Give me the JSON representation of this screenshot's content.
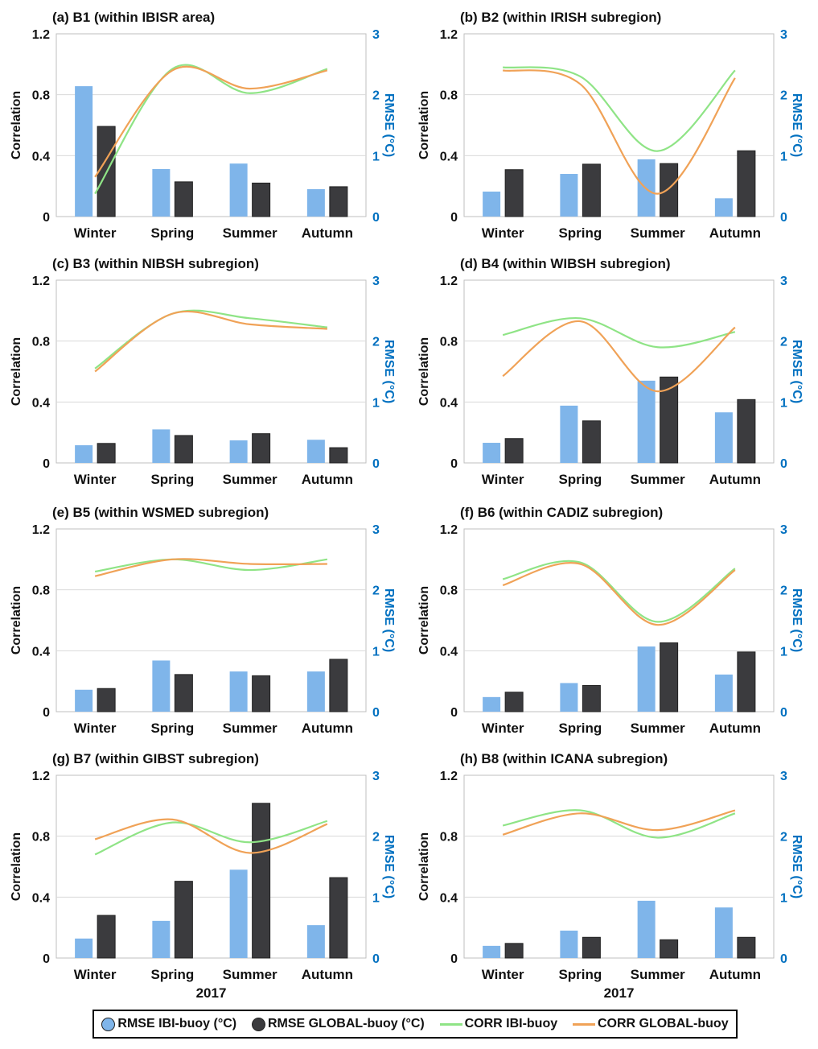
{
  "chart_data": [
    {
      "type": "bar+line",
      "title": "(a) B1 (within IBISR area)",
      "categories": [
        "Winter",
        "Spring",
        "Summer",
        "Autumn"
      ],
      "xlabel": "",
      "ylabel": "Correlation",
      "y2label": "RMSE (°C)",
      "ylim": [
        0,
        1.2
      ],
      "y2lim": [
        0,
        3
      ],
      "yticks": [
        "0",
        "0.4",
        "0.8",
        "1.2"
      ],
      "y2ticks": [
        "0",
        "1",
        "2",
        "3"
      ],
      "series": [
        {
          "name": "RMSE IBI-buoy (°C)",
          "type": "bar",
          "axis": "right",
          "values": [
            2.14,
            0.78,
            0.87,
            0.45
          ]
        },
        {
          "name": "RMSE GLOBAL-buoy (°C)",
          "type": "bar",
          "axis": "right",
          "values": [
            1.48,
            0.57,
            0.55,
            0.49
          ]
        },
        {
          "name": "CORR IBI-buoy",
          "type": "line",
          "axis": "left",
          "values": [
            0.15,
            0.97,
            0.81,
            0.97
          ]
        },
        {
          "name": "CORR GLOBAL-buoy",
          "type": "line",
          "axis": "left",
          "values": [
            0.26,
            0.96,
            0.84,
            0.96
          ]
        }
      ]
    },
    {
      "type": "bar+line",
      "title": "(b) B2 (within IRISH subregion)",
      "categories": [
        "Winter",
        "Spring",
        "Summer",
        "Autumn"
      ],
      "xlabel": "",
      "ylabel": "Correlation",
      "y2label": "RMSE (°C)",
      "ylim": [
        0,
        1.2
      ],
      "y2lim": [
        0,
        3
      ],
      "yticks": [
        "0",
        "0.4",
        "0.8",
        "1.2"
      ],
      "y2ticks": [
        "0",
        "1",
        "2",
        "3"
      ],
      "series": [
        {
          "name": "RMSE IBI-buoy (°C)",
          "type": "bar",
          "axis": "right",
          "values": [
            0.41,
            0.7,
            0.94,
            0.3
          ]
        },
        {
          "name": "RMSE GLOBAL-buoy (°C)",
          "type": "bar",
          "axis": "right",
          "values": [
            0.77,
            0.86,
            0.87,
            1.08
          ]
        },
        {
          "name": "CORR IBI-buoy",
          "type": "line",
          "axis": "left",
          "values": [
            0.98,
            0.92,
            0.43,
            0.96
          ]
        },
        {
          "name": "CORR GLOBAL-buoy",
          "type": "line",
          "axis": "left",
          "values": [
            0.96,
            0.87,
            0.15,
            0.91
          ]
        }
      ]
    },
    {
      "type": "bar+line",
      "title": "(c) B3 (within NIBSH subregion)",
      "categories": [
        "Winter",
        "Spring",
        "Summer",
        "Autumn"
      ],
      "xlabel": "",
      "ylabel": "Correlation",
      "y2label": "RMSE (°C)",
      "ylim": [
        0,
        1.2
      ],
      "y2lim": [
        0,
        3
      ],
      "yticks": [
        "0",
        "0.4",
        "0.8",
        "1.2"
      ],
      "y2ticks": [
        "0",
        "1",
        "2",
        "3"
      ],
      "series": [
        {
          "name": "RMSE IBI-buoy (°C)",
          "type": "bar",
          "axis": "right",
          "values": [
            0.29,
            0.55,
            0.37,
            0.38
          ]
        },
        {
          "name": "RMSE GLOBAL-buoy (°C)",
          "type": "bar",
          "axis": "right",
          "values": [
            0.32,
            0.45,
            0.48,
            0.25
          ]
        },
        {
          "name": "CORR IBI-buoy",
          "type": "line",
          "axis": "left",
          "values": [
            0.62,
            0.98,
            0.95,
            0.89
          ]
        },
        {
          "name": "CORR GLOBAL-buoy",
          "type": "line",
          "axis": "left",
          "values": [
            0.6,
            0.98,
            0.91,
            0.88
          ]
        }
      ]
    },
    {
      "type": "bar+line",
      "title": "(d) B4 (within WIBSH subregion)",
      "categories": [
        "Winter",
        "Spring",
        "Summer",
        "Autumn"
      ],
      "xlabel": "",
      "ylabel": "Correlation",
      "y2label": "RMSE (°C)",
      "ylim": [
        0,
        1.2
      ],
      "y2lim": [
        0,
        3
      ],
      "yticks": [
        "0",
        "0.4",
        "0.8",
        "1.2"
      ],
      "y2ticks": [
        "0",
        "1",
        "2",
        "3"
      ],
      "series": [
        {
          "name": "RMSE IBI-buoy (°C)",
          "type": "bar",
          "axis": "right",
          "values": [
            0.33,
            0.94,
            1.35,
            0.83
          ]
        },
        {
          "name": "RMSE GLOBAL-buoy (°C)",
          "type": "bar",
          "axis": "right",
          "values": [
            0.4,
            0.69,
            1.41,
            1.04
          ]
        },
        {
          "name": "CORR IBI-buoy",
          "type": "line",
          "axis": "left",
          "values": [
            0.84,
            0.95,
            0.76,
            0.86
          ]
        },
        {
          "name": "CORR GLOBAL-buoy",
          "type": "line",
          "axis": "left",
          "values": [
            0.57,
            0.93,
            0.47,
            0.89
          ]
        }
      ]
    },
    {
      "type": "bar+line",
      "title": "(e) B5 (within WSMED subregion)",
      "categories": [
        "Winter",
        "Spring",
        "Summer",
        "Autumn"
      ],
      "xlabel": "",
      "ylabel": "Correlation",
      "y2label": "RMSE (°C)",
      "ylim": [
        0,
        1.2
      ],
      "y2lim": [
        0,
        3
      ],
      "yticks": [
        "0",
        "0.4",
        "0.8",
        "1.2"
      ],
      "y2ticks": [
        "0",
        "1",
        "2",
        "3"
      ],
      "series": [
        {
          "name": "RMSE IBI-buoy (°C)",
          "type": "bar",
          "axis": "right",
          "values": [
            0.36,
            0.84,
            0.66,
            0.66
          ]
        },
        {
          "name": "RMSE GLOBAL-buoy (°C)",
          "type": "bar",
          "axis": "right",
          "values": [
            0.38,
            0.61,
            0.59,
            0.86
          ]
        },
        {
          "name": "CORR IBI-buoy",
          "type": "line",
          "axis": "left",
          "values": [
            0.92,
            1.0,
            0.93,
            1.0
          ]
        },
        {
          "name": "CORR GLOBAL-buoy",
          "type": "line",
          "axis": "left",
          "values": [
            0.89,
            1.0,
            0.97,
            0.97
          ]
        }
      ]
    },
    {
      "type": "bar+line",
      "title": "(f) B6 (within CADIZ subregion)",
      "categories": [
        "Winter",
        "Spring",
        "Summer",
        "Autumn"
      ],
      "xlabel": "",
      "ylabel": "Correlation",
      "y2label": "RMSE (°C)",
      "ylim": [
        0,
        1.2
      ],
      "y2lim": [
        0,
        3
      ],
      "yticks": [
        "0",
        "0.4",
        "0.8",
        "1.2"
      ],
      "y2ticks": [
        "0",
        "1",
        "2",
        "3"
      ],
      "series": [
        {
          "name": "RMSE IBI-buoy (°C)",
          "type": "bar",
          "axis": "right",
          "values": [
            0.24,
            0.47,
            1.07,
            0.61
          ]
        },
        {
          "name": "RMSE GLOBAL-buoy (°C)",
          "type": "bar",
          "axis": "right",
          "values": [
            0.32,
            0.43,
            1.13,
            0.98
          ]
        },
        {
          "name": "CORR IBI-buoy",
          "type": "line",
          "axis": "left",
          "values": [
            0.87,
            0.98,
            0.59,
            0.94
          ]
        },
        {
          "name": "CORR GLOBAL-buoy",
          "type": "line",
          "axis": "left",
          "values": [
            0.83,
            0.97,
            0.57,
            0.93
          ]
        }
      ]
    },
    {
      "type": "bar+line",
      "title": "(g) B7 (within GIBST subregion)",
      "categories": [
        "Winter",
        "Spring",
        "Summer",
        "Autumn"
      ],
      "xlabel": "2017",
      "ylabel": "Correlation",
      "y2label": "RMSE (°C)",
      "ylim": [
        0,
        1.2
      ],
      "y2lim": [
        0,
        3
      ],
      "yticks": [
        "0",
        "0.4",
        "0.8",
        "1.2"
      ],
      "y2ticks": [
        "0",
        "1",
        "2",
        "3"
      ],
      "series": [
        {
          "name": "RMSE IBI-buoy (°C)",
          "type": "bar",
          "axis": "right",
          "values": [
            0.32,
            0.61,
            1.45,
            0.54
          ]
        },
        {
          "name": "RMSE GLOBAL-buoy (°C)",
          "type": "bar",
          "axis": "right",
          "values": [
            0.7,
            1.26,
            2.54,
            1.32
          ]
        },
        {
          "name": "CORR IBI-buoy",
          "type": "line",
          "axis": "left",
          "values": [
            0.68,
            0.89,
            0.76,
            0.9
          ]
        },
        {
          "name": "CORR GLOBAL-buoy",
          "type": "line",
          "axis": "left",
          "values": [
            0.78,
            0.91,
            0.69,
            0.88
          ]
        }
      ]
    },
    {
      "type": "bar+line",
      "title": "(h) B8 (within ICANA subregion)",
      "categories": [
        "Winter",
        "Spring",
        "Summer",
        "Autumn"
      ],
      "xlabel": "2017",
      "ylabel": "Correlation",
      "y2label": "RMSE (°C)",
      "ylim": [
        0,
        1.2
      ],
      "y2lim": [
        0,
        3
      ],
      "yticks": [
        "0",
        "0.4",
        "0.8",
        "1.2"
      ],
      "y2ticks": [
        "0",
        "1",
        "2",
        "3"
      ],
      "series": [
        {
          "name": "RMSE IBI-buoy (°C)",
          "type": "bar",
          "axis": "right",
          "values": [
            0.2,
            0.45,
            0.94,
            0.83
          ]
        },
        {
          "name": "RMSE GLOBAL-buoy (°C)",
          "type": "bar",
          "axis": "right",
          "values": [
            0.24,
            0.34,
            0.3,
            0.34
          ]
        },
        {
          "name": "CORR IBI-buoy",
          "type": "line",
          "axis": "left",
          "values": [
            0.87,
            0.97,
            0.79,
            0.95
          ]
        },
        {
          "name": "CORR GLOBAL-buoy",
          "type": "line",
          "axis": "left",
          "values": [
            0.81,
            0.95,
            0.84,
            0.97
          ]
        }
      ]
    }
  ],
  "legend": {
    "placement": "bottom",
    "items": [
      {
        "label": "RMSE IBI-buoy (°C)",
        "color": "#7fb5ea",
        "kind": "dot"
      },
      {
        "label": "RMSE GLOBAL-buoy (°C)",
        "color": "#3b3b3e",
        "kind": "dot"
      },
      {
        "label": "CORR IBI-buoy",
        "color": "#8fe486",
        "kind": "line"
      },
      {
        "label": "CORR GLOBAL-buoy",
        "color": "#f0a257",
        "kind": "line"
      }
    ]
  },
  "colors": {
    "ibi_bar": "#7fb5ea",
    "global_bar": "#3b3b3e",
    "ibi_line": "#8fe486",
    "global_line": "#f0a257",
    "rmse_axis": "#0070c0",
    "grid": "#d9d9d9"
  }
}
